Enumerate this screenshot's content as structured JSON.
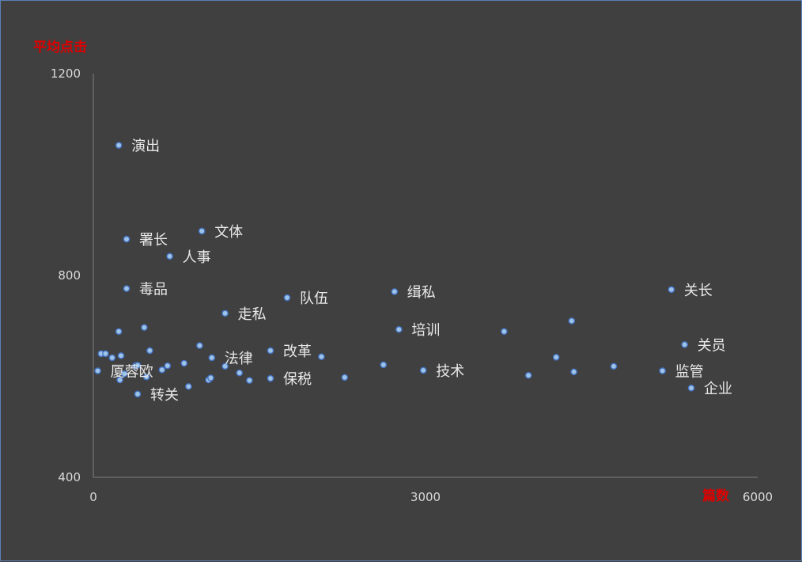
{
  "colors": {
    "background": "#404040",
    "border": "#5b7fb5",
    "axis": "#7f7f7f",
    "tick_text": "#d9d9d9",
    "axis_title": "#e00000",
    "point_fill": "#9dc3e6",
    "point_stroke": "#4472c4",
    "label_text": "#e8e8e8"
  },
  "chart_data": {
    "type": "scatter",
    "xlabel": "篇数",
    "ylabel": "平均点击",
    "xlim": [
      0,
      6000
    ],
    "ylim": [
      400,
      1200
    ],
    "x_ticks": [
      "0",
      "3000",
      "6000"
    ],
    "y_ticks": [
      "400",
      "800",
      "1200"
    ],
    "grid": false,
    "legend": "none",
    "points": [
      {
        "x": 230,
        "y": 1058,
        "label": "演出"
      },
      {
        "x": 300,
        "y": 872,
        "label": "署长"
      },
      {
        "x": 980,
        "y": 888,
        "label": "文体"
      },
      {
        "x": 690,
        "y": 838,
        "label": "人事"
      },
      {
        "x": 300,
        "y": 774,
        "label": "毒品"
      },
      {
        "x": 1750,
        "y": 756,
        "label": "队伍"
      },
      {
        "x": 2720,
        "y": 768,
        "label": "缉私"
      },
      {
        "x": 5220,
        "y": 772,
        "label": "关长"
      },
      {
        "x": 1190,
        "y": 725,
        "label": "走私"
      },
      {
        "x": 1070,
        "y": 637,
        "label": "法律"
      },
      {
        "x": 1600,
        "y": 651,
        "label": "改革"
      },
      {
        "x": 2760,
        "y": 693,
        "label": "培训"
      },
      {
        "x": 5340,
        "y": 663,
        "label": "关员"
      },
      {
        "x": 2980,
        "y": 612,
        "label": "技术"
      },
      {
        "x": 5140,
        "y": 611,
        "label": "监管"
      },
      {
        "x": 1600,
        "y": 596,
        "label": "保税"
      },
      {
        "x": 5400,
        "y": 577,
        "label": "企业"
      },
      {
        "x": 40,
        "y": 611,
        "label": "厦蓉欧"
      },
      {
        "x": 400,
        "y": 565,
        "label": "转关"
      },
      {
        "x": 70,
        "y": 645,
        "label": ""
      },
      {
        "x": 110,
        "y": 645,
        "label": ""
      },
      {
        "x": 170,
        "y": 637,
        "label": ""
      },
      {
        "x": 250,
        "y": 641,
        "label": ""
      },
      {
        "x": 230,
        "y": 689,
        "label": ""
      },
      {
        "x": 460,
        "y": 697,
        "label": ""
      },
      {
        "x": 510,
        "y": 651,
        "label": ""
      },
      {
        "x": 380,
        "y": 621,
        "label": ""
      },
      {
        "x": 400,
        "y": 622,
        "label": ""
      },
      {
        "x": 620,
        "y": 613,
        "label": ""
      },
      {
        "x": 670,
        "y": 621,
        "label": ""
      },
      {
        "x": 820,
        "y": 626,
        "label": ""
      },
      {
        "x": 960,
        "y": 661,
        "label": ""
      },
      {
        "x": 280,
        "y": 605,
        "label": ""
      },
      {
        "x": 240,
        "y": 593,
        "label": ""
      },
      {
        "x": 480,
        "y": 599,
        "label": ""
      },
      {
        "x": 860,
        "y": 580,
        "label": ""
      },
      {
        "x": 1040,
        "y": 593,
        "label": ""
      },
      {
        "x": 1060,
        "y": 597,
        "label": ""
      },
      {
        "x": 1190,
        "y": 620,
        "label": ""
      },
      {
        "x": 1320,
        "y": 607,
        "label": ""
      },
      {
        "x": 1410,
        "y": 592,
        "label": ""
      },
      {
        "x": 2060,
        "y": 639,
        "label": ""
      },
      {
        "x": 2270,
        "y": 598,
        "label": ""
      },
      {
        "x": 2620,
        "y": 623,
        "label": ""
      },
      {
        "x": 3710,
        "y": 689,
        "label": ""
      },
      {
        "x": 3930,
        "y": 602,
        "label": ""
      },
      {
        "x": 4180,
        "y": 638,
        "label": ""
      },
      {
        "x": 4320,
        "y": 710,
        "label": ""
      },
      {
        "x": 4340,
        "y": 609,
        "label": ""
      },
      {
        "x": 4700,
        "y": 620,
        "label": ""
      }
    ]
  }
}
